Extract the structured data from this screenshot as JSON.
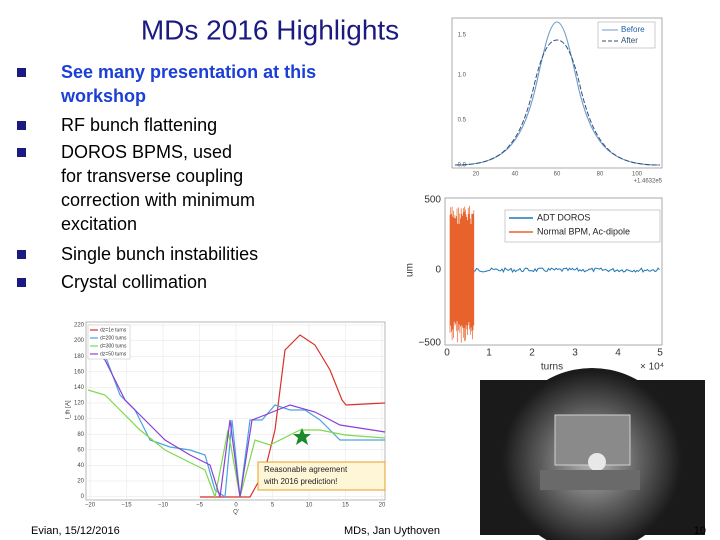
{
  "title": "MDs 2016 Highlights",
  "bullets": [
    {
      "lines": [
        "See many presentation at this",
        "workshop"
      ]
    },
    {
      "lines": [
        "RF bunch flattening"
      ]
    },
    {
      "lines": [
        "DOROS BPMS, used",
        "for transverse coupling",
        "correction with minimum",
        "excitation"
      ]
    },
    {
      "lines": [
        "Single bunch instabilities"
      ]
    },
    {
      "lines": [
        "Crystal collimation"
      ]
    }
  ],
  "figures": {
    "bunch_profile": {
      "legend": [
        "Before",
        "After"
      ],
      "yticks": [
        "1.5",
        "1.0",
        "0.5",
        "0.0"
      ],
      "xticks": [
        "20",
        "40",
        "60",
        "80",
        "100"
      ],
      "offset": "+1.4632e5"
    },
    "doros": {
      "legend": [
        "ADT DOROS",
        "Normal BPM, Ac-dipole"
      ],
      "yticks": [
        "500",
        "0",
        "−500"
      ],
      "ylabel": "um",
      "xticks": [
        "0",
        "1",
        "2",
        "3",
        "4",
        "5"
      ],
      "xlabel": "turns",
      "exponent": "× 10⁴"
    },
    "instability": {
      "legend": [
        "dz=1e turns",
        "d=200 turns",
        "d=300 turns",
        "dz=50 turns"
      ],
      "yticks": [
        "220",
        "200",
        "180",
        "160",
        "140",
        "120",
        "100",
        "80",
        "60",
        "40",
        "20",
        "0"
      ],
      "xticks": [
        "−20",
        "−15",
        "−10",
        "−5",
        "0",
        "5",
        "10",
        "15",
        "20"
      ],
      "xlabel": "Q'",
      "ylabel": "I_th [A]",
      "annotation": [
        "Reasonable agreement",
        "with 2016 prediction!"
      ]
    }
  },
  "footer": {
    "left": "Evian, 15/12/2016",
    "center": "MDs, Jan Uythoven",
    "page": "10"
  }
}
